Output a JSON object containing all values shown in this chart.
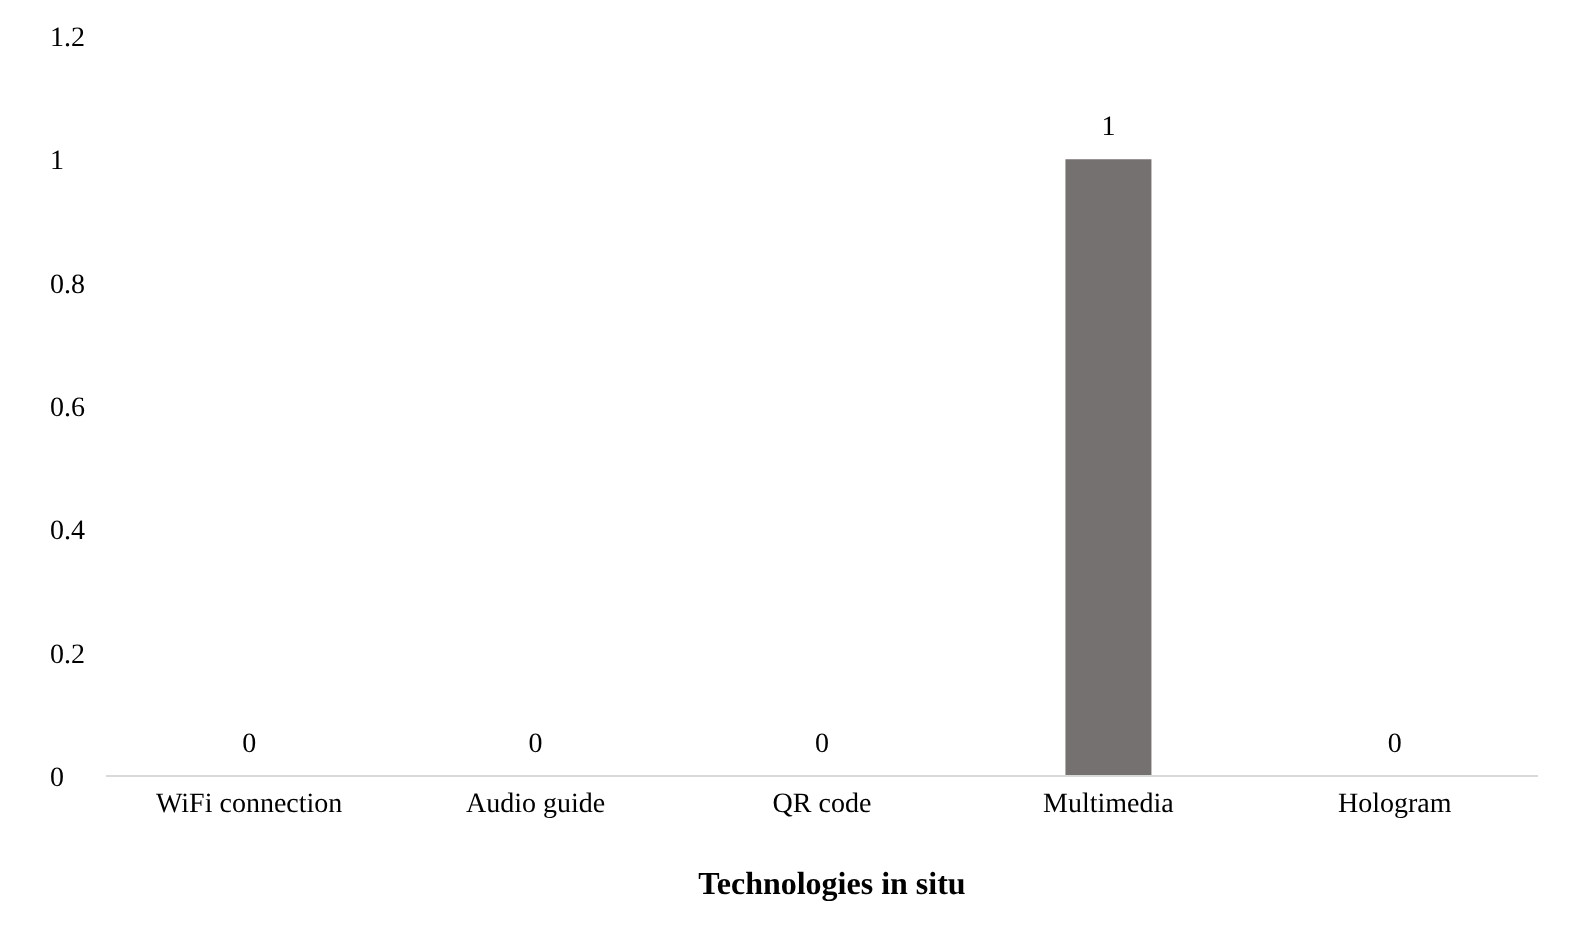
{
  "chart_data": {
    "type": "bar",
    "title": "Technologies in situ",
    "categories": [
      "WiFi connection",
      "Audio guide",
      "QR code",
      "Multimedia",
      "Hologram"
    ],
    "values": [
      0,
      0,
      0,
      1,
      0
    ],
    "color": "#767171",
    "ylim": [
      0,
      1.2
    ],
    "yticks": [
      0,
      0.2,
      0.4,
      0.6,
      0.8,
      1,
      1.2
    ],
    "grid": false,
    "data_labels": true
  }
}
